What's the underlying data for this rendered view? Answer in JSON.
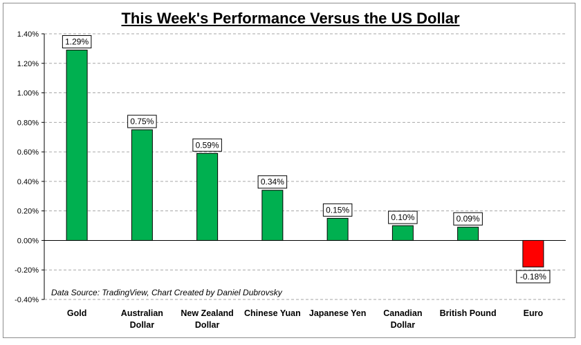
{
  "chart_data": {
    "type": "bar",
    "title": "This Week's Performance Versus the US Dollar",
    "categories": [
      "Gold",
      "Australian Dollar",
      "New Zealand Dollar",
      "Chinese Yuan",
      "Japanese Yen",
      "Canadian Dollar",
      "British Pound",
      "Euro"
    ],
    "category_lines": [
      [
        "Gold"
      ],
      [
        "Australian",
        "Dollar"
      ],
      [
        "New Zealand",
        "Dollar"
      ],
      [
        "Chinese Yuan"
      ],
      [
        "Japanese Yen"
      ],
      [
        "Canadian",
        "Dollar"
      ],
      [
        "British Pound"
      ],
      [
        "Euro"
      ]
    ],
    "values": [
      1.29,
      0.75,
      0.59,
      0.34,
      0.15,
      0.1,
      0.09,
      -0.18
    ],
    "data_labels": [
      "1.29%",
      "0.75%",
      "0.59%",
      "0.34%",
      "0.15%",
      "0.10%",
      "0.09%",
      "-0.18%"
    ],
    "ylim": [
      -0.4,
      1.4
    ],
    "y_ticks": [
      1.4,
      1.2,
      1.0,
      0.8,
      0.6,
      0.4,
      0.2,
      0.0,
      -0.2,
      -0.4
    ],
    "y_tick_labels": [
      "1.40%",
      "1.20%",
      "1.00%",
      "0.80%",
      "0.60%",
      "0.40%",
      "0.20%",
      "0.00%",
      "-0.20%",
      "-0.40%"
    ],
    "grid": true,
    "colors": {
      "positive": "#00b050",
      "negative": "#ff0000",
      "grid": "#a6a6a6"
    },
    "annotation": "Data Source: TradingView, Chart Created by Daniel Dubrovsky"
  }
}
